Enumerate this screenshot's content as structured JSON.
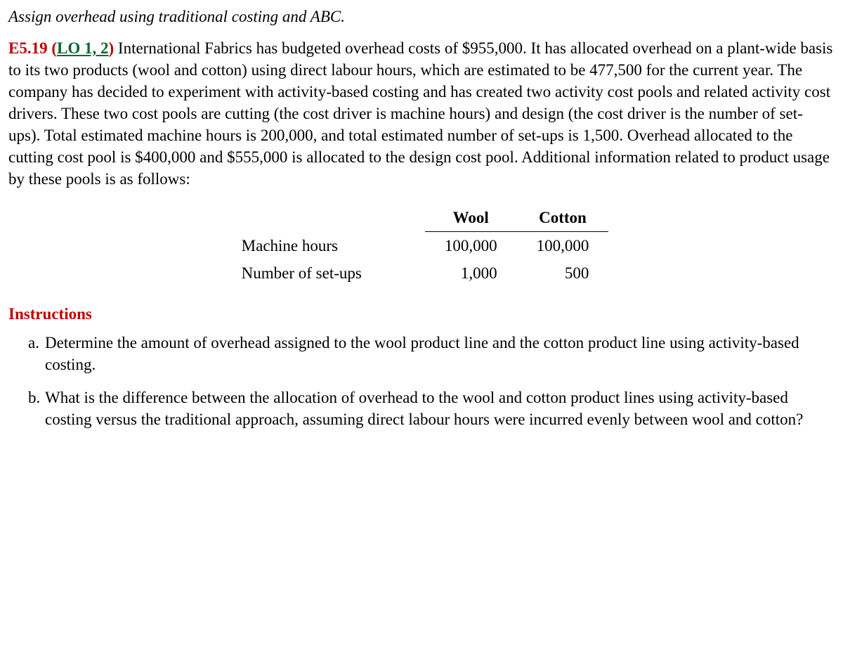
{
  "title": "Assign overhead using traditional costing and ABC.",
  "exercise_number": "E5.19",
  "lo_label": "LO 1, 2",
  "body": "International Fabrics has budgeted overhead costs of $955,000. It has allocated overhead on a plant-wide basis to its two products (wool and cotton) using direct labour hours, which are estimated to be 477,500 for the current year. The company has decided to experiment with activity-based costing and has created two activity cost pools and related activity cost drivers. These two cost pools are cutting (the cost driver is machine hours) and design (the cost driver is the number of set-ups). Total estimated machine hours is 200,000, and total estimated number of set-ups is 1,500. Overhead allocated to the cutting cost pool is $400,000 and $555,000 is allocated to the design cost pool. Additional information related to product usage by these pools is as follows:",
  "table": {
    "columns": [
      "Wool",
      "Cotton"
    ],
    "rows": [
      {
        "label": "Machine hours",
        "values": [
          "100,000",
          "100,000"
        ]
      },
      {
        "label": "Number of set-ups",
        "values": [
          "1,000",
          "500"
        ]
      }
    ]
  },
  "instructions_heading": "Instructions",
  "instructions": [
    {
      "marker": "a.",
      "text": "Determine the amount of overhead assigned to the wool product line and the cotton product line using activity-based costing."
    },
    {
      "marker": "b.",
      "text": "What is the difference between the allocation of overhead to the wool and cotton product lines using activity-based costing versus the traditional approach, assuming direct labour hours were incurred evenly between wool and cotton?"
    }
  ]
}
